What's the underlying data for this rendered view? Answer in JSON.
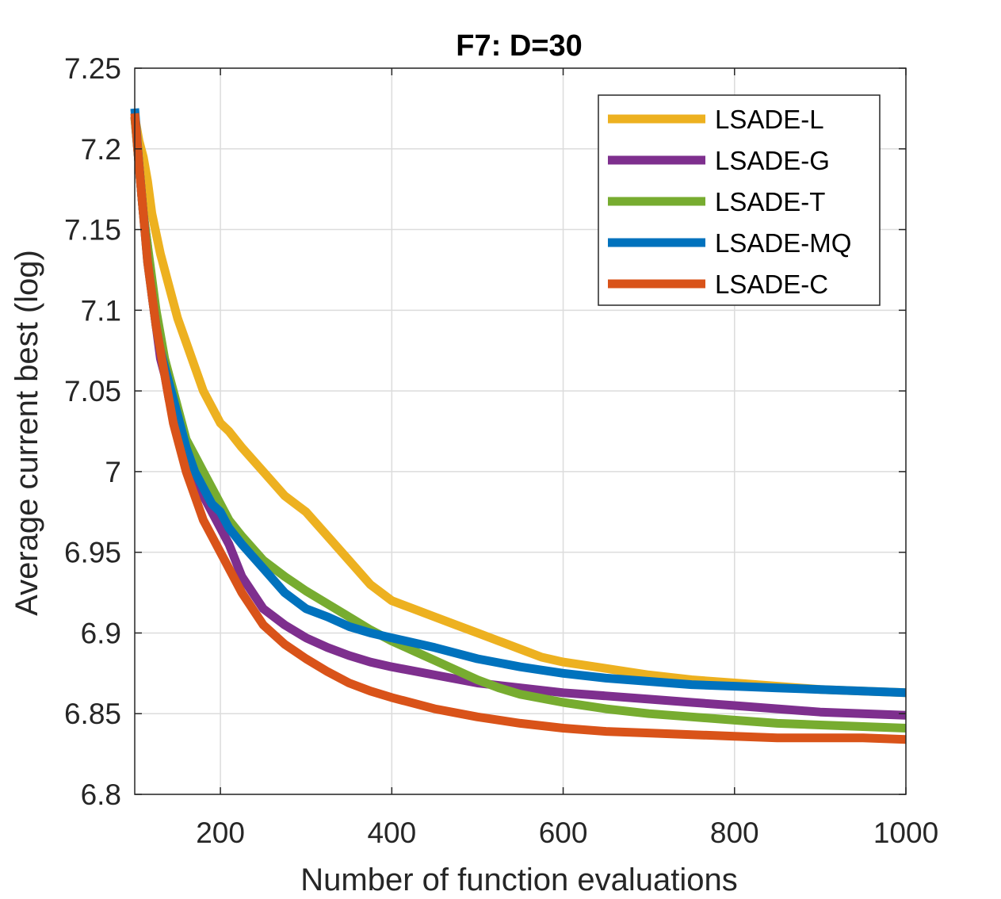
{
  "chart_data": {
    "type": "line",
    "title": "F7: D=30",
    "xlabel": "Number of function evaluations",
    "ylabel": "Average current best (log)",
    "xlim": [
      100,
      1000
    ],
    "ylim": [
      6.8,
      7.25
    ],
    "xticks": [
      200,
      400,
      600,
      800,
      1000
    ],
    "yticks": [
      6.8,
      6.85,
      6.9,
      6.95,
      7.0,
      7.05,
      7.1,
      7.15,
      7.2,
      7.25
    ],
    "xtick_labels": [
      "200",
      "400",
      "600",
      "800",
      "1000"
    ],
    "ytick_labels": [
      "6.8",
      "6.85",
      "6.9",
      "6.95",
      "7",
      "7.05",
      "7.1",
      "7.15",
      "7.2",
      "7.25"
    ],
    "grid": true,
    "legend_position": "top-right",
    "series": [
      {
        "name": "LSADE-L",
        "color": "#EDB120",
        "x": [
          100,
          105,
          110,
          115,
          120,
          130,
          140,
          150,
          160,
          170,
          180,
          190,
          200,
          210,
          225,
          250,
          275,
          300,
          325,
          350,
          375,
          400,
          425,
          450,
          475,
          500,
          525,
          550,
          575,
          600,
          650,
          700,
          750,
          800,
          850,
          900,
          950,
          1000
        ],
        "y": [
          7.22,
          7.205,
          7.195,
          7.18,
          7.16,
          7.135,
          7.115,
          7.095,
          7.08,
          7.065,
          7.05,
          7.04,
          7.03,
          7.025,
          7.015,
          7.0,
          6.985,
          6.975,
          6.96,
          6.945,
          6.93,
          6.92,
          6.915,
          6.91,
          6.905,
          6.9,
          6.895,
          6.89,
          6.885,
          6.882,
          6.878,
          6.874,
          6.871,
          6.869,
          6.867,
          6.865,
          6.864,
          6.863
        ]
      },
      {
        "name": "LSADE-G",
        "color": "#7E2F8E",
        "x": [
          100,
          105,
          110,
          115,
          120,
          125,
          130,
          135,
          140,
          145,
          150,
          155,
          160,
          170,
          180,
          190,
          200,
          210,
          225,
          250,
          275,
          300,
          325,
          350,
          375,
          400,
          450,
          500,
          550,
          600,
          650,
          700,
          750,
          800,
          850,
          900,
          950,
          1000
        ],
        "y": [
          7.22,
          7.19,
          7.16,
          7.14,
          7.11,
          7.09,
          7.07,
          7.06,
          7.045,
          7.035,
          7.025,
          7.015,
          7.005,
          6.995,
          6.985,
          6.975,
          6.965,
          6.955,
          6.935,
          6.915,
          6.905,
          6.897,
          6.891,
          6.886,
          6.882,
          6.879,
          6.874,
          6.869,
          6.866,
          6.863,
          6.861,
          6.859,
          6.857,
          6.855,
          6.853,
          6.851,
          6.85,
          6.849
        ]
      },
      {
        "name": "LSADE-T",
        "color": "#77AC30",
        "x": [
          100,
          105,
          110,
          115,
          120,
          125,
          130,
          135,
          140,
          145,
          150,
          155,
          160,
          170,
          180,
          190,
          200,
          210,
          225,
          250,
          275,
          300,
          325,
          350,
          375,
          400,
          425,
          450,
          475,
          500,
          525,
          550,
          600,
          650,
          700,
          750,
          800,
          850,
          900,
          950,
          1000
        ],
        "y": [
          7.22,
          7.19,
          7.16,
          7.14,
          7.12,
          7.1,
          7.085,
          7.07,
          7.06,
          7.05,
          7.04,
          7.03,
          7.02,
          7.01,
          7.0,
          6.99,
          6.98,
          6.97,
          6.96,
          6.945,
          6.935,
          6.926,
          6.918,
          6.91,
          6.902,
          6.895,
          6.889,
          6.883,
          6.877,
          6.871,
          6.866,
          6.862,
          6.857,
          6.853,
          6.85,
          6.848,
          6.846,
          6.844,
          6.843,
          6.842,
          6.841
        ]
      },
      {
        "name": "LSADE-MQ",
        "color": "#0072BD",
        "x": [
          100,
          105,
          110,
          115,
          120,
          125,
          130,
          135,
          140,
          145,
          150,
          155,
          160,
          170,
          180,
          190,
          200,
          210,
          225,
          250,
          275,
          300,
          325,
          350,
          375,
          400,
          450,
          500,
          550,
          600,
          650,
          700,
          750,
          800,
          850,
          900,
          950,
          1000
        ],
        "y": [
          7.225,
          7.19,
          7.16,
          7.13,
          7.11,
          7.09,
          7.075,
          7.065,
          7.055,
          7.045,
          7.035,
          7.025,
          7.015,
          7.0,
          6.99,
          6.98,
          6.975,
          6.965,
          6.955,
          6.94,
          6.925,
          6.915,
          6.91,
          6.904,
          6.9,
          6.897,
          6.891,
          6.884,
          6.879,
          6.875,
          6.872,
          6.87,
          6.868,
          6.867,
          6.866,
          6.865,
          6.864,
          6.863
        ]
      },
      {
        "name": "LSADE-C",
        "color": "#D95319",
        "x": [
          100,
          105,
          110,
          115,
          120,
          125,
          130,
          135,
          140,
          145,
          150,
          155,
          160,
          170,
          180,
          190,
          200,
          210,
          225,
          250,
          275,
          300,
          325,
          350,
          375,
          400,
          450,
          500,
          550,
          600,
          650,
          700,
          750,
          800,
          850,
          900,
          950,
          1000
        ],
        "y": [
          7.222,
          7.19,
          7.16,
          7.13,
          7.11,
          7.09,
          7.075,
          7.06,
          7.045,
          7.03,
          7.02,
          7.01,
          7.0,
          6.985,
          6.97,
          6.96,
          6.95,
          6.94,
          6.925,
          6.905,
          6.893,
          6.884,
          6.876,
          6.869,
          6.864,
          6.86,
          6.853,
          6.848,
          6.844,
          6.841,
          6.839,
          6.838,
          6.837,
          6.836,
          6.835,
          6.835,
          6.835,
          6.834
        ]
      }
    ]
  }
}
